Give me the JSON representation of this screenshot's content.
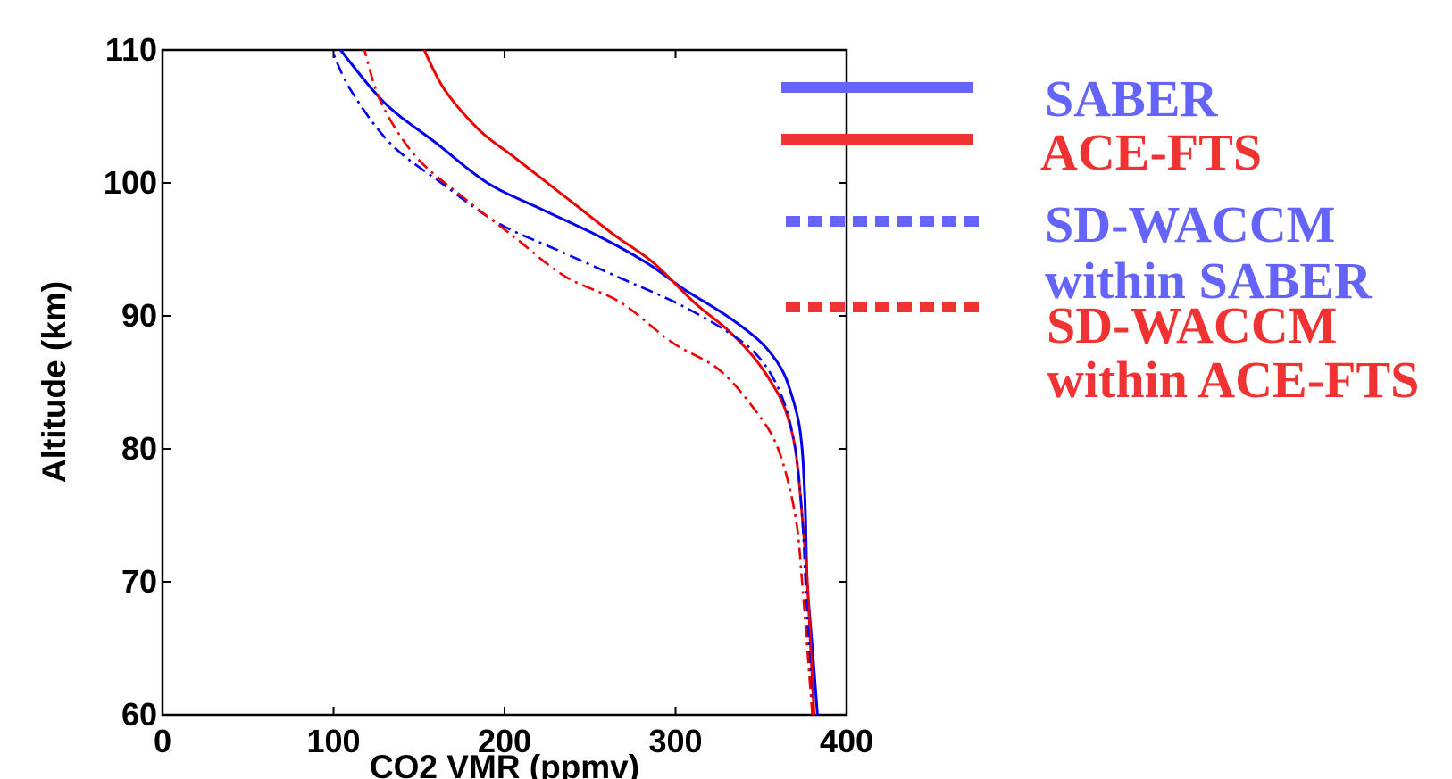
{
  "chart_data": {
    "type": "line",
    "title": "",
    "xlabel": "CO2 VMR (ppmv)",
    "ylabel": "Altitude (km)",
    "xlim": [
      0,
      400
    ],
    "ylim": [
      60,
      110
    ],
    "xticks": [
      "0",
      "100",
      "200",
      "300",
      "400"
    ],
    "yticks": [
      "60",
      "70",
      "80",
      "90",
      "100",
      "110"
    ],
    "grid": false,
    "legend_position": "right, outside plot",
    "series": [
      {
        "name": "SABER",
        "color": "#0000ee",
        "legend_color": "#6464fa",
        "line_style": "solid",
        "x": [
          383,
          380,
          377,
          376,
          375,
          374,
          372,
          368,
          362,
          350,
          330,
          305,
          283,
          255,
          222,
          190,
          160,
          130,
          104
        ],
        "y": [
          60,
          65,
          70,
          75,
          78,
          80,
          82,
          84,
          86,
          88,
          90,
          92,
          94,
          96,
          98,
          100,
          103,
          106,
          110
        ]
      },
      {
        "name": "ACE-FTS",
        "color": "#ee0000",
        "legend_color": "#f03232",
        "line_style": "solid",
        "x": [
          381,
          379,
          377,
          374,
          370,
          364,
          356,
          345,
          330,
          311,
          287,
          265,
          245,
          225,
          205,
          185,
          165,
          153
        ],
        "y": [
          60,
          65,
          70,
          75,
          80,
          83,
          85,
          87,
          89,
          91,
          94,
          96,
          98,
          100,
          102,
          104,
          107,
          110
        ]
      },
      {
        "name": "SD-WACCM within SABER",
        "color": "#0000ee",
        "legend_color": "#6464fa",
        "line_style": "dashdot",
        "x": [
          380,
          378,
          376,
          374,
          370,
          362,
          348,
          328,
          300,
          265,
          230,
          196,
          163,
          133,
          110,
          99
        ],
        "y": [
          60,
          65,
          70,
          75,
          80,
          84,
          87,
          89,
          91,
          93,
          95,
          97,
          100,
          103,
          107,
          110
        ]
      },
      {
        "name": "SD-WACCM within ACE-FTS",
        "color": "#ee0000",
        "legend_color": "#f03232",
        "line_style": "dashdot",
        "x": [
          380,
          377,
          374,
          370,
          360,
          346,
          325,
          298,
          268,
          235,
          205,
          175,
          148,
          128,
          118
        ],
        "y": [
          60,
          65,
          70,
          75,
          80,
          83,
          86,
          88,
          91,
          93,
          96,
          99,
          102,
          106,
          110
        ]
      }
    ],
    "legend": {
      "entries": [
        {
          "lines": [
            "SABER"
          ],
          "color": "#6464fa",
          "style": "solid"
        },
        {
          "lines": [
            "ACE-FTS"
          ],
          "color": "#f03232",
          "style": "solid"
        },
        {
          "lines": [
            "SD-WACCM",
            "within SABER"
          ],
          "color": "#6464fa",
          "style": "dotted"
        },
        {
          "lines": [
            "SD-WACCM",
            "within ACE-FTS"
          ],
          "color": "#f03232",
          "style": "dotted"
        }
      ]
    }
  }
}
